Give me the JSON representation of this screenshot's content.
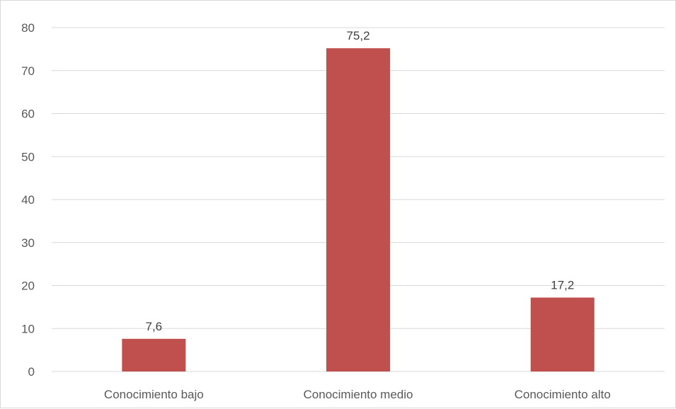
{
  "chart_data": {
    "type": "bar",
    "categories": [
      "Conocimiento bajo",
      "Conocimiento medio",
      "Conocimiento alto"
    ],
    "values": [
      7.6,
      75.2,
      17.2
    ],
    "data_labels": [
      "7,6",
      "75,2",
      "17,2"
    ],
    "title": "",
    "xlabel": "",
    "ylabel": "",
    "ylim": [
      0,
      80
    ],
    "yticks": [
      0,
      10,
      20,
      30,
      40,
      50,
      60,
      70,
      80
    ],
    "grid": true,
    "legend": "none",
    "bar_color": "#c0504d",
    "grid_color": "#d9d9d9"
  }
}
